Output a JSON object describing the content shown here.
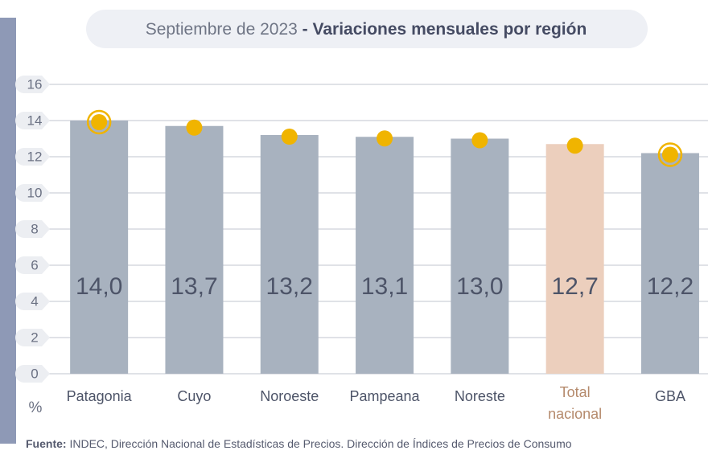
{
  "chart_data": {
    "type": "bar",
    "title": "Septiembre de 2023",
    "subtitle": "- Variaciones mensuales por región",
    "categories": [
      "Patagonia",
      "Cuyo",
      "Noroeste",
      "Pampeana",
      "Noreste",
      "Total nacional",
      "GBA"
    ],
    "values": [
      14.0,
      13.7,
      13.2,
      13.1,
      13.0,
      12.7,
      12.2
    ],
    "value_labels": [
      "14,0",
      "13,7",
      "13,2",
      "13,1",
      "13,0",
      "12,7",
      "12,2"
    ],
    "colors": [
      "#a8b2bf",
      "#a8b2bf",
      "#a8b2bf",
      "#a8b2bf",
      "#a8b2bf",
      "#eccfbd",
      "#a8b2bf"
    ],
    "marker_color": "#f0b400",
    "ring_marker_categories": [
      "Patagonia",
      "GBA"
    ],
    "ylim": [
      0,
      16
    ],
    "yticks": [
      0,
      2,
      4,
      6,
      8,
      10,
      12,
      14,
      16
    ],
    "grid": true,
    "y_unit": "%",
    "source_label": "Fuente:",
    "source": "INDEC, Dirección Nacional de Estadísticas de Precios. Dirección de Índices de Precios de Consumo"
  }
}
